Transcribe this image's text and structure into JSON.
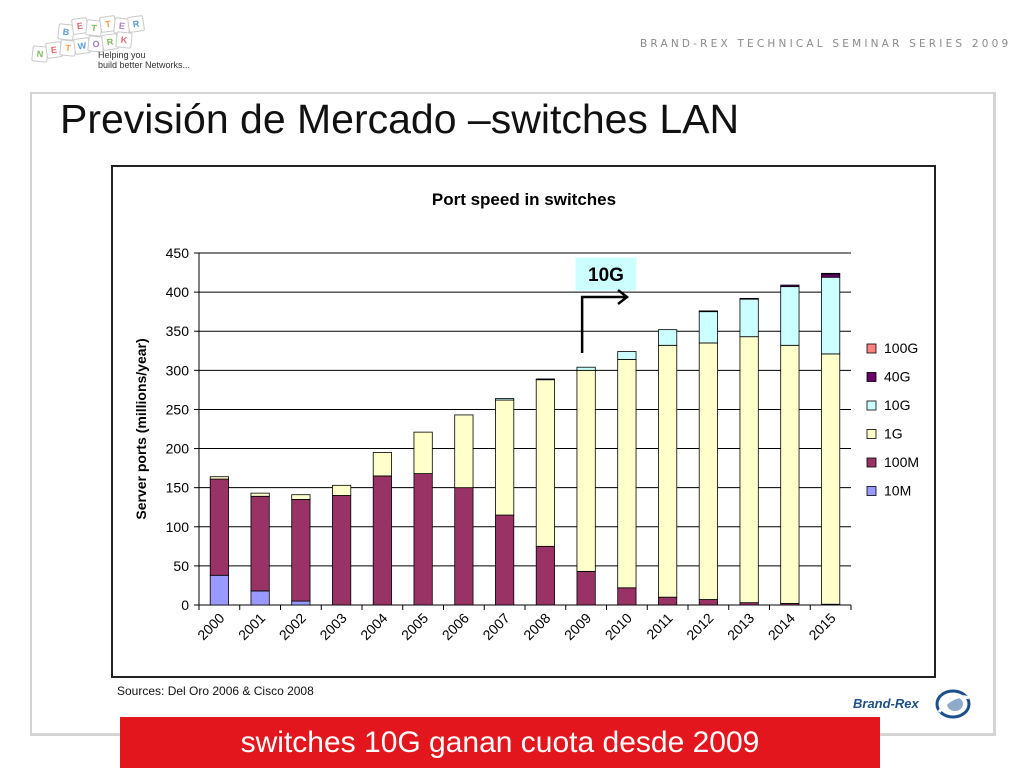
{
  "header": {
    "series_title": "BRAND-REX TECHNICAL SEMINAR SERIES 2009",
    "logo_tagline_1": "Helping you",
    "logo_tagline_2": "build better Networks...",
    "logo_tiles": [
      "B",
      "E",
      "T",
      "T",
      "E",
      "R",
      "N",
      "E",
      "T",
      "W",
      "O",
      "R",
      "K"
    ]
  },
  "slide": {
    "title": "Previsión de Mercado –switches LAN",
    "sources": "Sources: Del Oro 2006 & Cisco 2008",
    "conclusion": "switches 10G ganan cuota desde 2009",
    "brand": "Brand-Rex"
  },
  "colors": {
    "s10M": "#9999ff",
    "s100M": "#993366",
    "s1G": "#ffffcc",
    "s10G": "#ccffff",
    "s40G": "#660066",
    "s100G": "#ff8080",
    "banner": "#e3161d"
  },
  "chart_data": {
    "type": "bar",
    "stacked": true,
    "title": "Port speed in switches",
    "xlabel": "",
    "ylabel": "Server ports (millions/year)",
    "ylim": [
      0,
      450
    ],
    "yticks": [
      0,
      50,
      100,
      150,
      200,
      250,
      300,
      350,
      400,
      450
    ],
    "grid": true,
    "legend_position": "right",
    "annotation": "10G",
    "categories": [
      "2000",
      "2001",
      "2002",
      "2003",
      "2004",
      "2005",
      "2006",
      "2007",
      "2008",
      "2009",
      "2010",
      "2011",
      "2012",
      "2013",
      "2014",
      "2015"
    ],
    "series": [
      {
        "name": "10M",
        "color": "#9999ff",
        "values": [
          38,
          18,
          5,
          0,
          0,
          0,
          0,
          0,
          0,
          0,
          0,
          0,
          0,
          0,
          0,
          0
        ]
      },
      {
        "name": "100M",
        "color": "#993366",
        "values": [
          123,
          121,
          130,
          140,
          165,
          168,
          150,
          115,
          75,
          43,
          22,
          10,
          7,
          3,
          2,
          1
        ]
      },
      {
        "name": "1G",
        "color": "#ffffcc",
        "values": [
          3,
          4,
          6,
          13,
          30,
          53,
          93,
          147,
          213,
          257,
          292,
          322,
          328,
          340,
          330,
          320
        ]
      },
      {
        "name": "10G",
        "color": "#ccffff",
        "values": [
          0,
          0,
          0,
          0,
          0,
          0,
          0,
          2,
          1,
          4,
          10,
          20,
          40,
          48,
          75,
          98
        ]
      },
      {
        "name": "40G",
        "color": "#660066",
        "values": [
          0,
          0,
          0,
          0,
          0,
          0,
          0,
          0,
          0,
          0,
          0,
          0,
          1,
          1,
          2,
          4
        ]
      },
      {
        "name": "100G",
        "color": "#ff8080",
        "values": [
          0,
          0,
          0,
          0,
          0,
          0,
          0,
          0,
          0,
          0,
          0,
          0,
          0,
          0,
          0,
          1
        ]
      }
    ]
  }
}
